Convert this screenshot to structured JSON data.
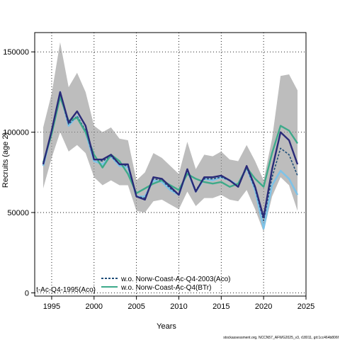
{
  "chart_data": {
    "type": "line",
    "title": "",
    "xlabel": "Years",
    "ylabel": "Recruits (age 2)",
    "xlim": [
      1993,
      2025
    ],
    "ylim": [
      -2000,
      162000
    ],
    "xticks": [
      1995,
      2000,
      2005,
      2010,
      2015,
      2020,
      2025
    ],
    "xtick_labels": [
      "1995",
      "2000",
      "2005",
      "2010",
      "2015",
      "2020",
      "2025"
    ],
    "yticks": [
      0,
      50000,
      100000,
      150000
    ],
    "ytick_labels": [
      "0",
      "50000",
      "100000",
      "150000"
    ],
    "grid": true,
    "legend_position": "bottom-left",
    "x": [
      1994,
      1995,
      1996,
      1997,
      1998,
      1999,
      2000,
      2001,
      2002,
      2003,
      2004,
      2005,
      2006,
      2007,
      2008,
      2009,
      2010,
      2011,
      2012,
      2013,
      2014,
      2015,
      2016,
      2017,
      2018,
      2019,
      2020,
      2021,
      2022,
      2023,
      2024
    ],
    "band": {
      "lower": [
        65000,
        84000,
        100000,
        88000,
        92000,
        87000,
        72000,
        67000,
        70000,
        67000,
        67000,
        51000,
        50000,
        57000,
        58000,
        55000,
        52000,
        63000,
        54000,
        59000,
        59000,
        61000,
        58000,
        57000,
        64000,
        52000,
        38000,
        60000,
        72000,
        67000,
        51000
      ],
      "upper": [
        103000,
        124000,
        156000,
        128000,
        137000,
        125000,
        104000,
        100000,
        103000,
        96000,
        95000,
        70000,
        75000,
        87000,
        84000,
        79000,
        74000,
        94000,
        77000,
        86000,
        85000,
        88000,
        83000,
        82000,
        92000,
        82000,
        70000,
        96000,
        135000,
        136000,
        126000
      ]
    },
    "series": [
      {
        "name": "",
        "color": "#2a2a78",
        "values": [
          80000,
          101000,
          125000,
          106000,
          113000,
          104000,
          83000,
          83000,
          86000,
          80000,
          80000,
          60000,
          58000,
          72000,
          71000,
          66000,
          61000,
          77000,
          63000,
          72000,
          72000,
          73000,
          70000,
          66000,
          79000,
          66000,
          47000,
          77000,
          100000,
          95000,
          80000
        ]
      },
      {
        "name": "",
        "color": "#7ec3e8",
        "values": [
          79000,
          100000,
          125000,
          104000,
          110000,
          100000,
          82000,
          80000,
          85000,
          79000,
          78000,
          60000,
          60000,
          70000,
          69000,
          64000,
          61000,
          76000,
          63000,
          71000,
          70000,
          72000,
          70000,
          67000,
          78000,
          64000,
          40000,
          67000,
          76000,
          71000,
          61000
        ]
      },
      {
        "name": "w.o. Norw-Coast-Ac-Q4-2003(Aco)",
        "color": "#1f4e79",
        "values": [
          80000,
          100000,
          123000,
          105000,
          110000,
          101000,
          83000,
          82000,
          85000,
          80000,
          79000,
          60000,
          59000,
          71000,
          70000,
          65000,
          61000,
          76000,
          64000,
          71000,
          71000,
          72000,
          70000,
          66000,
          78000,
          65000,
          45000,
          72000,
          90000,
          86000,
          73000
        ]
      },
      {
        "name": "w.o. Norw-Coast-Ac-Q4(BTr)",
        "color": "#3daa8a",
        "values": [
          81000,
          99000,
          122000,
          107000,
          109000,
          100000,
          86000,
          78000,
          86000,
          82000,
          74000,
          62000,
          65000,
          68000,
          70000,
          67000,
          64000,
          74000,
          71000,
          69000,
          68000,
          69000,
          66000,
          68000,
          78000,
          71000,
          66000,
          87000,
          104000,
          101000,
          93000
        ]
      }
    ],
    "legend_entries": [
      {
        "label": "t-Ac-Q4-1995(Aco)",
        "color": "#7ec3e8"
      },
      {
        "label": "w.o. Norw-Coast-Ac-Q4-2003(Aco)",
        "color": "#1f4e79"
      },
      {
        "label": "w.o. Norw-Coast-Ac-Q4(BTr)",
        "color": "#3daa8a"
      }
    ],
    "footer": "stockassessment.org, NCCN57_AFWG2025_v3, r18011, git:1cc464b806f"
  }
}
